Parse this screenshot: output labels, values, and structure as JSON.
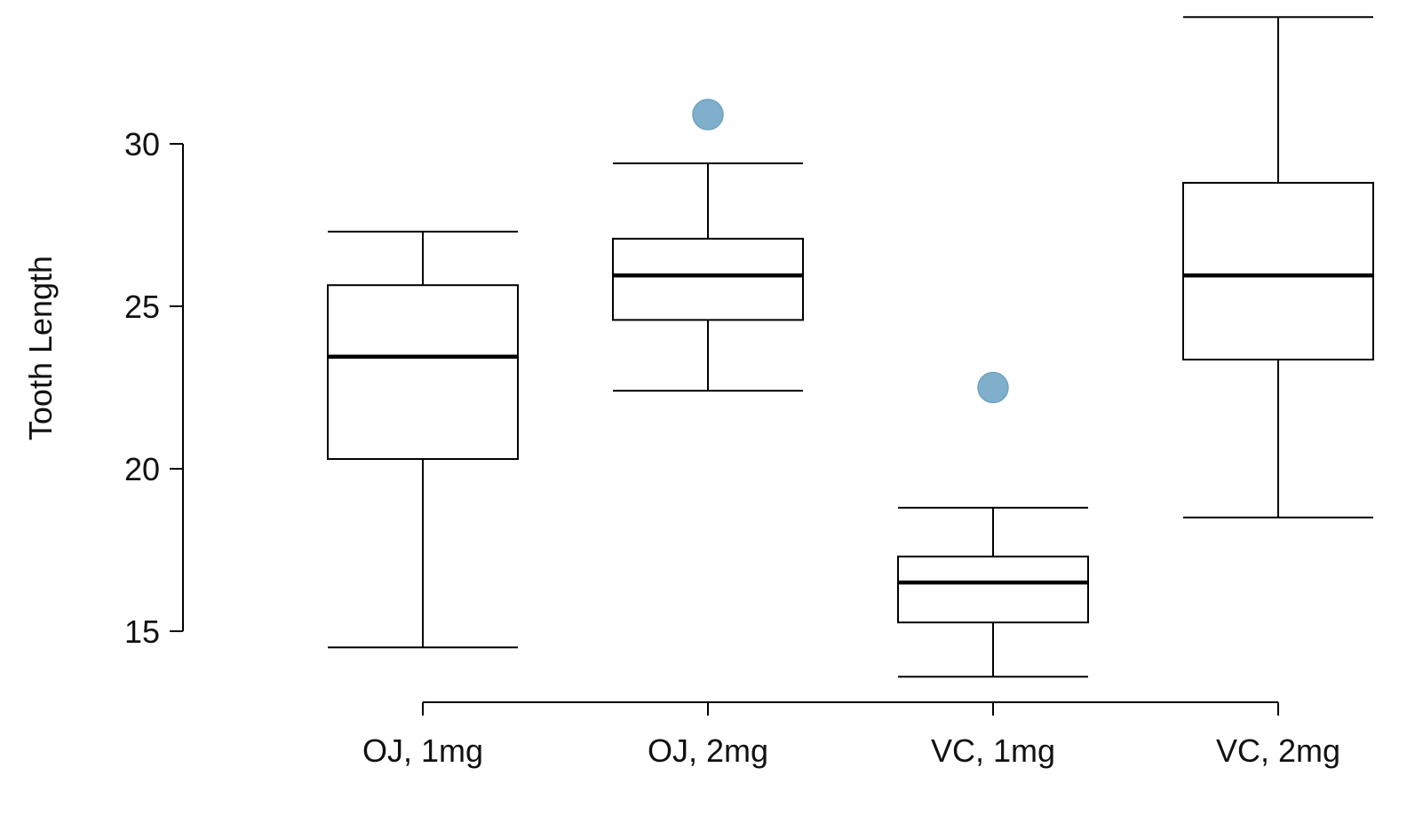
{
  "chart_data": {
    "type": "boxplot",
    "title": "",
    "xlabel": "",
    "ylabel": "Tooth Length",
    "ylim": [
      13.2,
      34
    ],
    "yticks": [
      15,
      20,
      25,
      30
    ],
    "ytick_labels": [
      "15",
      "20",
      "25",
      "30"
    ],
    "grid": false,
    "legend": "none",
    "categories": [
      "OJ, 1mg",
      "OJ, 2mg",
      "VC, 1mg",
      "VC, 2mg"
    ],
    "boxes": [
      {
        "whisker_low": 14.5,
        "q1": 20.3,
        "median": 23.45,
        "q3": 25.65,
        "whisker_high": 27.3,
        "outliers": []
      },
      {
        "whisker_low": 22.4,
        "q1": 24.58,
        "median": 25.95,
        "q3": 27.08,
        "whisker_high": 29.4,
        "outliers": [
          30.9
        ]
      },
      {
        "whisker_low": 13.6,
        "q1": 15.27,
        "median": 16.5,
        "q3": 17.3,
        "whisker_high": 18.8,
        "outliers": [
          22.5
        ]
      },
      {
        "whisker_low": 18.5,
        "q1": 23.36,
        "median": 25.95,
        "q3": 28.8,
        "whisker_high": 33.9,
        "outliers": []
      }
    ],
    "colors": {
      "box": "#000000",
      "outlier": "#7FAFCB",
      "outlier_stroke": "#6FA3C2"
    }
  }
}
